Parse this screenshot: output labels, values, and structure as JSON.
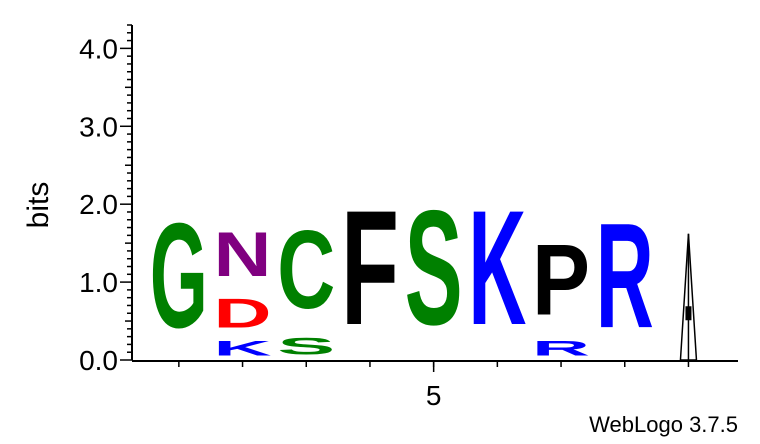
{
  "credit": "WebLogo 3.7.5",
  "chart_data": {
    "type": "sequence-logo",
    "ylabel": "bits",
    "ylim": [
      0,
      4.3
    ],
    "yticks": [
      "0.0",
      "1.0",
      "2.0",
      "3.0",
      "4.0"
    ],
    "xtick_labels": [
      {
        "position": 5,
        "label": "5"
      }
    ],
    "colors": {
      "G": "#008000",
      "S": "#008000",
      "C": "#008000",
      "N": "#800080",
      "D": "#ff0000",
      "K": "#0000ff",
      "R": "#0000ff",
      "F": "#000000",
      "P": "#000000"
    },
    "positions": [
      {
        "position": 1,
        "letters": [
          {
            "letter": "G",
            "bits": 2.15
          }
        ]
      },
      {
        "position": 2,
        "letters": [
          {
            "letter": "K",
            "bits": 0.3
          },
          {
            "letter": "D",
            "bits": 0.6
          },
          {
            "letter": "N",
            "bits": 0.9
          }
        ]
      },
      {
        "position": 3,
        "letters": [
          {
            "letter": "S",
            "bits": 0.35
          },
          {
            "letter": "C",
            "bits": 1.6
          }
        ]
      },
      {
        "position": 4,
        "letters": [
          {
            "letter": "F",
            "bits": 2.35
          }
        ]
      },
      {
        "position": 5,
        "letters": [
          {
            "letter": "S",
            "bits": 2.35
          }
        ]
      },
      {
        "position": 6,
        "letters": [
          {
            "letter": "K",
            "bits": 2.35
          }
        ]
      },
      {
        "position": 7,
        "letters": [
          {
            "letter": "R",
            "bits": 0.3
          },
          {
            "letter": "P",
            "bits": 1.45
          }
        ]
      },
      {
        "position": 8,
        "letters": [
          {
            "letter": "R",
            "bits": 2.15
          }
        ]
      },
      {
        "position": 9,
        "letters": [],
        "error_bar": {
          "low": 0.0,
          "high": 1.62,
          "mark": 0.6
        }
      }
    ]
  }
}
